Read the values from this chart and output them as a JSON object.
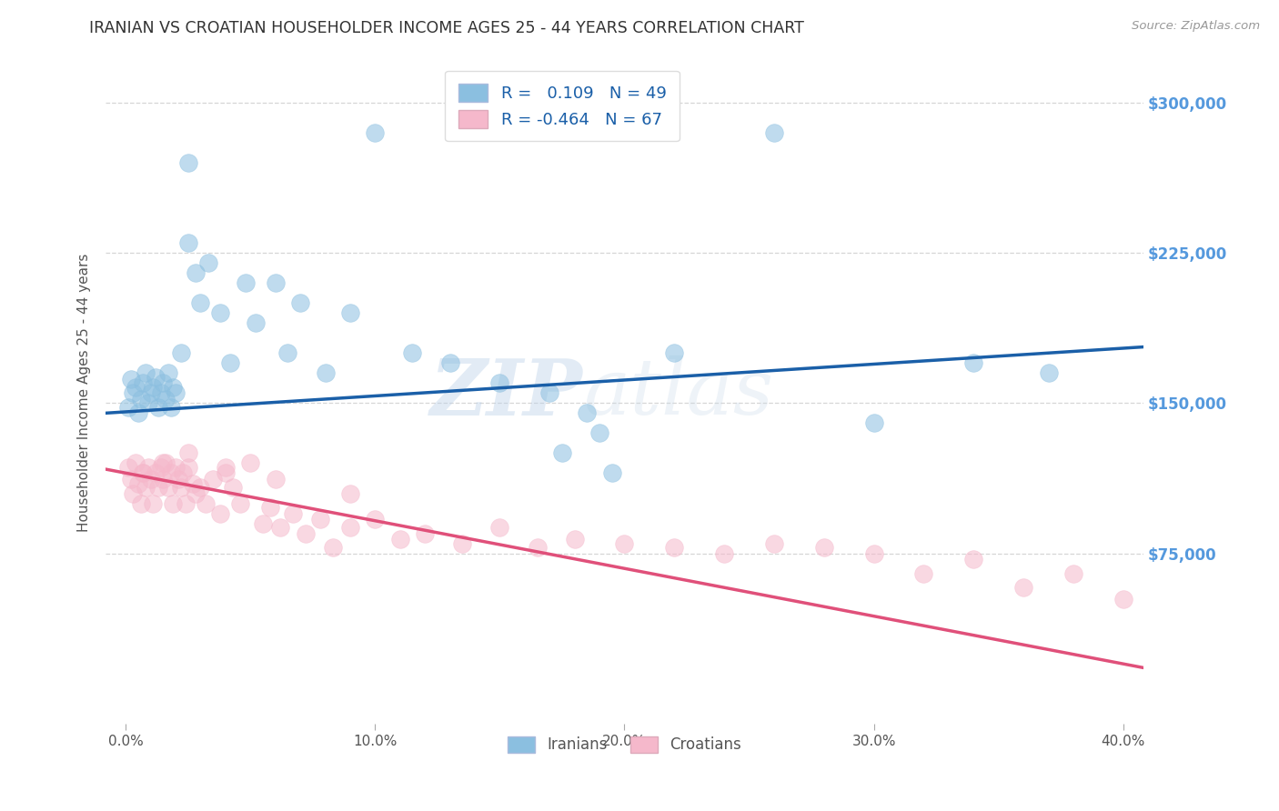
{
  "title": "IRANIAN VS CROATIAN HOUSEHOLDER INCOME AGES 25 - 44 YEARS CORRELATION CHART",
  "source": "Source: ZipAtlas.com",
  "ylabel": "Householder Income Ages 25 - 44 years",
  "xlabel_ticks": [
    "0.0%",
    "10.0%",
    "20.0%",
    "30.0%",
    "40.0%"
  ],
  "xlabel_vals": [
    0.0,
    0.1,
    0.2,
    0.3,
    0.4
  ],
  "ytick_labels": [
    "$75,000",
    "$150,000",
    "$225,000",
    "$300,000"
  ],
  "ytick_vals": [
    75000,
    150000,
    225000,
    300000
  ],
  "ylim": [
    -10000,
    320000
  ],
  "xlim": [
    -0.008,
    0.408
  ],
  "iranian_R": "0.109",
  "iranian_N": "49",
  "croatian_R": "-0.464",
  "croatian_N": "67",
  "iranian_color": "#8bbfe0",
  "croatian_color": "#f5b8cb",
  "iranian_line_color": "#1a5fa8",
  "croatian_line_color": "#e0507a",
  "legend_label_iranian": "Iranians",
  "legend_label_croatian": "Croatians",
  "watermark_zip": "ZIP",
  "watermark_atlas": "atlas",
  "background_color": "#ffffff",
  "grid_color": "#cccccc",
  "title_color": "#333333",
  "right_tick_color": "#5599dd",
  "iranians_x": [
    0.001,
    0.002,
    0.003,
    0.004,
    0.005,
    0.006,
    0.007,
    0.008,
    0.009,
    0.01,
    0.011,
    0.012,
    0.013,
    0.014,
    0.015,
    0.016,
    0.017,
    0.018,
    0.019,
    0.02,
    0.022,
    0.025,
    0.028,
    0.03,
    0.033,
    0.038,
    0.042,
    0.048,
    0.052,
    0.06,
    0.065,
    0.07,
    0.08,
    0.09,
    0.1,
    0.115,
    0.13,
    0.15,
    0.17,
    0.19,
    0.22,
    0.26,
    0.3,
    0.34,
    0.37,
    0.175,
    0.185,
    0.195,
    0.025
  ],
  "iranians_y": [
    148000,
    162000,
    155000,
    158000,
    145000,
    152000,
    160000,
    165000,
    150000,
    155000,
    158000,
    163000,
    148000,
    155000,
    160000,
    152000,
    165000,
    148000,
    158000,
    155000,
    175000,
    270000,
    215000,
    200000,
    220000,
    195000,
    170000,
    210000,
    190000,
    210000,
    175000,
    200000,
    165000,
    195000,
    285000,
    175000,
    170000,
    160000,
    155000,
    135000,
    175000,
    285000,
    140000,
    170000,
    165000,
    125000,
    145000,
    115000,
    230000
  ],
  "croatians_x": [
    0.001,
    0.002,
    0.003,
    0.004,
    0.005,
    0.006,
    0.007,
    0.008,
    0.009,
    0.01,
    0.011,
    0.012,
    0.013,
    0.014,
    0.015,
    0.016,
    0.017,
    0.018,
    0.019,
    0.02,
    0.021,
    0.022,
    0.023,
    0.024,
    0.025,
    0.027,
    0.028,
    0.03,
    0.032,
    0.035,
    0.038,
    0.04,
    0.043,
    0.046,
    0.05,
    0.055,
    0.058,
    0.062,
    0.067,
    0.072,
    0.078,
    0.083,
    0.09,
    0.1,
    0.11,
    0.12,
    0.135,
    0.15,
    0.165,
    0.18,
    0.2,
    0.22,
    0.24,
    0.26,
    0.28,
    0.3,
    0.32,
    0.34,
    0.36,
    0.38,
    0.4,
    0.007,
    0.015,
    0.025,
    0.04,
    0.06,
    0.09
  ],
  "croatians_y": [
    118000,
    112000,
    105000,
    120000,
    110000,
    100000,
    115000,
    108000,
    118000,
    112000,
    100000,
    115000,
    108000,
    118000,
    112000,
    120000,
    108000,
    115000,
    100000,
    118000,
    112000,
    108000,
    115000,
    100000,
    118000,
    110000,
    105000,
    108000,
    100000,
    112000,
    95000,
    115000,
    108000,
    100000,
    120000,
    90000,
    98000,
    88000,
    95000,
    85000,
    92000,
    78000,
    88000,
    92000,
    82000,
    85000,
    80000,
    88000,
    78000,
    82000,
    80000,
    78000,
    75000,
    80000,
    78000,
    75000,
    65000,
    72000,
    58000,
    65000,
    52000,
    115000,
    120000,
    125000,
    118000,
    112000,
    105000
  ]
}
